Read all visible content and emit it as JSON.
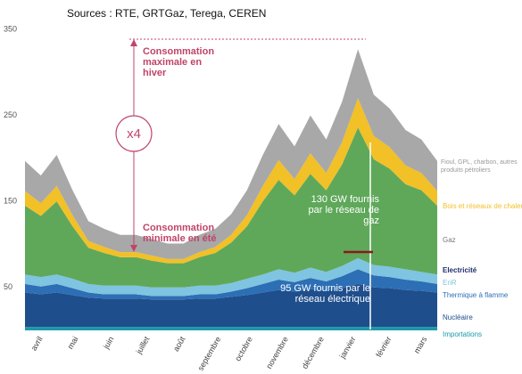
{
  "chart_data": {
    "type": "stacked_area",
    "source": "Sources : RTE, GRTGaz, Terega, CEREN",
    "x": [
      0,
      2,
      4,
      6,
      8,
      10,
      12,
      14,
      16,
      18,
      20,
      22,
      24,
      26,
      28,
      30,
      32,
      34,
      36,
      38,
      40,
      42,
      44,
      46,
      48,
      50,
      52
    ],
    "xlim": [
      0,
      52
    ],
    "xticks": [
      {
        "value": 2,
        "label": "avril"
      },
      {
        "value": 6.5,
        "label": "mai"
      },
      {
        "value": 11,
        "label": "juin"
      },
      {
        "value": 15.5,
        "label": "juillet"
      },
      {
        "value": 20,
        "label": "août"
      },
      {
        "value": 24.5,
        "label": "septembre"
      },
      {
        "value": 28.5,
        "label": "octobre"
      },
      {
        "value": 33,
        "label": "novembre"
      },
      {
        "value": 37.5,
        "label": "décembre"
      },
      {
        "value": 41.5,
        "label": "janvier"
      },
      {
        "value": 46,
        "label": "février"
      },
      {
        "value": 50.5,
        "label": "mars"
      }
    ],
    "ylim": [
      0,
      350
    ],
    "yticks": [
      50,
      150,
      250,
      350
    ],
    "legend_group": "Electricité",
    "series": [
      {
        "name": "Importations",
        "color": "#1a9aa8",
        "values": [
          4,
          4,
          4,
          4,
          4,
          4,
          4,
          4,
          4,
          4,
          4,
          4,
          4,
          4,
          4,
          4,
          4,
          4,
          4,
          4,
          4,
          4,
          4,
          4,
          4,
          4,
          4
        ]
      },
      {
        "name": "Nucléaire",
        "color": "#1f4e8c",
        "values": [
          40,
          38,
          40,
          37,
          34,
          33,
          33,
          33,
          32,
          32,
          32,
          33,
          33,
          35,
          37,
          40,
          43,
          41,
          44,
          42,
          45,
          50,
          46,
          45,
          43,
          42,
          40
        ]
      },
      {
        "name": "Thermique à flamme",
        "color": "#2d6fb5",
        "values": [
          10,
          9,
          10,
          8,
          6,
          5,
          5,
          5,
          4,
          4,
          4,
          5,
          5,
          6,
          8,
          10,
          12,
          11,
          13,
          11,
          14,
          17,
          14,
          13,
          12,
          11,
          10
        ]
      },
      {
        "name": "EnR",
        "color": "#7fc4e0",
        "values": [
          11,
          11,
          11,
          11,
          10,
          10,
          10,
          10,
          10,
          10,
          10,
          10,
          10,
          10,
          11,
          11,
          12,
          11,
          12,
          11,
          12,
          13,
          12,
          12,
          12,
          11,
          11
        ]
      },
      {
        "name": "Gaz",
        "color": "#5fa85a",
        "values": [
          80,
          71,
          85,
          61,
          42,
          38,
          33,
          33,
          31,
          28,
          28,
          33,
          38,
          47,
          61,
          85,
          104,
          90,
          109,
          95,
          118,
          152,
          123,
          114,
          99,
          95,
          80
        ]
      },
      {
        "name": "Bois et réseaux de chaleur",
        "color": "#f2c027",
        "values": [
          17,
          15,
          18,
          13,
          8,
          7,
          6,
          6,
          6,
          5,
          5,
          6,
          7,
          9,
          13,
          18,
          23,
          19,
          24,
          20,
          26,
          34,
          27,
          25,
          22,
          20,
          17
        ]
      },
      {
        "name": "Fioul, GPL, charbon, autres produits pétroliers",
        "color": "#a8a8a8",
        "values": [
          35,
          32,
          36,
          29,
          23,
          21,
          20,
          20,
          19,
          18,
          18,
          20,
          21,
          24,
          29,
          36,
          42,
          38,
          44,
          39,
          47,
          57,
          48,
          45,
          41,
          39,
          35
        ]
      }
    ],
    "annotations": {
      "max": "Consommation maximale en hiver",
      "ratio": "x4",
      "min": "Consommation minimale en été",
      "gas": "130 GW fournis par le réseau de gaz",
      "elec": "95 GW fournis par le réseau électrique"
    }
  }
}
